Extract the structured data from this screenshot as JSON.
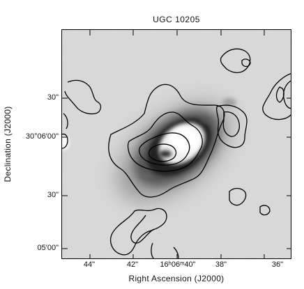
{
  "figure": {
    "title": "UGC 10205",
    "xlabel": "Right Ascension (J2000)",
    "ylabel": "Declination (J2000)",
    "xticks": [
      "44\"",
      "42\"",
      "16ʰ06ᵐ40\"",
      "38\"",
      "36\""
    ],
    "yticks": [
      "30\"",
      "30°06′00\"",
      "30\"",
      "05′00\""
    ]
  }
}
